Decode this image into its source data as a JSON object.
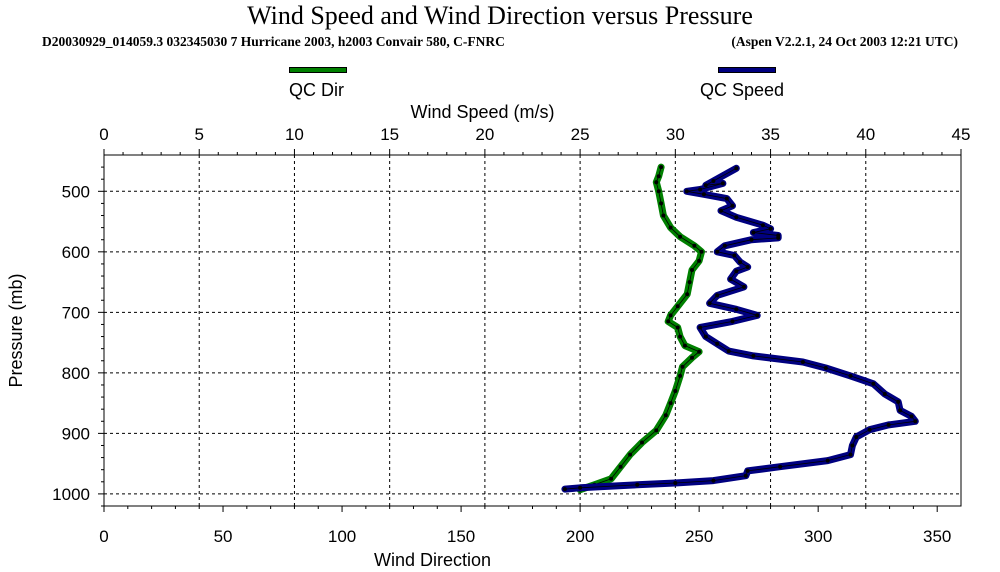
{
  "header": {
    "title": "Wind Speed and Wind Direction versus Pressure",
    "subtitle_left": "D20030929_014059.3 032345030 7 Hurricane 2003, h2003 Convair 580, C-FNRC",
    "subtitle_right": "(Aspen V2.2.1, 24 Oct 2003  12:21 UTC)"
  },
  "legend": {
    "dir_label": "QC Dir",
    "speed_label": "QC Speed",
    "dir_color": "#008000",
    "speed_color": "#000080"
  },
  "chart_data": {
    "type": "line",
    "title": "Wind Speed and Wind Direction versus Pressure",
    "ylabel": "Pressure (mb)",
    "ylim": [
      1020,
      440
    ],
    "y_ticks": [
      "500",
      "600",
      "700",
      "800",
      "900",
      "1000"
    ],
    "x_top": {
      "label": "Wind Speed (m/s)",
      "range": [
        0,
        45
      ],
      "ticks": [
        "0",
        "5",
        "10",
        "15",
        "20",
        "25",
        "30",
        "35",
        "40",
        "45"
      ]
    },
    "x_bottom": {
      "label": "Wind Direction",
      "range": [
        0,
        360
      ],
      "ticks": [
        "0",
        "50",
        "100",
        "150",
        "200",
        "250",
        "300",
        "350"
      ]
    },
    "grid": true,
    "series": [
      {
        "name": "QC Dir",
        "axis": "bottom",
        "color": "#008000",
        "points": [
          [
            234,
            460
          ],
          [
            233,
            475
          ],
          [
            232,
            485
          ],
          [
            233,
            500
          ],
          [
            234,
            520
          ],
          [
            235,
            540
          ],
          [
            238,
            560
          ],
          [
            242,
            575
          ],
          [
            248,
            590
          ],
          [
            251,
            600
          ],
          [
            250,
            615
          ],
          [
            247,
            630
          ],
          [
            246,
            650
          ],
          [
            245,
            670
          ],
          [
            241,
            690
          ],
          [
            238,
            705
          ],
          [
            237,
            715
          ],
          [
            241,
            725
          ],
          [
            242,
            740
          ],
          [
            244,
            755
          ],
          [
            250,
            765
          ],
          [
            247,
            775
          ],
          [
            243,
            790
          ],
          [
            242,
            805
          ],
          [
            240,
            830
          ],
          [
            238,
            850
          ],
          [
            236,
            870
          ],
          [
            232,
            895
          ],
          [
            226,
            915
          ],
          [
            221,
            935
          ],
          [
            217,
            955
          ],
          [
            213,
            975
          ],
          [
            206,
            985
          ],
          [
            200,
            993
          ]
        ]
      },
      {
        "name": "QC Speed",
        "axis": "top",
        "color": "#000080",
        "points": [
          [
            33.2,
            462
          ],
          [
            32.0,
            483
          ],
          [
            31.6,
            490
          ],
          [
            32.5,
            487
          ],
          [
            31.3,
            497
          ],
          [
            30.6,
            500
          ],
          [
            31.5,
            505
          ],
          [
            32.7,
            512
          ],
          [
            33.0,
            524
          ],
          [
            32.4,
            532
          ],
          [
            33.2,
            543
          ],
          [
            34.6,
            556
          ],
          [
            35.0,
            562
          ],
          [
            34.1,
            568
          ],
          [
            35.4,
            573
          ],
          [
            35.4,
            577
          ],
          [
            34.0,
            580
          ],
          [
            32.6,
            590
          ],
          [
            32.2,
            600
          ],
          [
            33.1,
            606
          ],
          [
            33.4,
            617
          ],
          [
            33.8,
            625
          ],
          [
            33.2,
            632
          ],
          [
            32.9,
            645
          ],
          [
            33.6,
            658
          ],
          [
            32.2,
            672
          ],
          [
            31.8,
            685
          ],
          [
            33.2,
            695
          ],
          [
            34.3,
            705
          ],
          [
            33.0,
            715
          ],
          [
            31.3,
            725
          ],
          [
            31.6,
            740
          ],
          [
            32.2,
            752
          ],
          [
            32.8,
            764
          ],
          [
            34.1,
            772
          ],
          [
            36.7,
            782
          ],
          [
            37.9,
            792
          ],
          [
            39.2,
            805
          ],
          [
            40.4,
            818
          ],
          [
            41.0,
            835
          ],
          [
            41.7,
            848
          ],
          [
            41.8,
            862
          ],
          [
            42.4,
            872
          ],
          [
            42.6,
            880
          ],
          [
            41.2,
            886
          ],
          [
            40.2,
            894
          ],
          [
            39.5,
            906
          ],
          [
            39.3,
            920
          ],
          [
            39.2,
            935
          ],
          [
            38.0,
            945
          ],
          [
            35.5,
            955
          ],
          [
            33.8,
            962
          ],
          [
            33.7,
            970
          ],
          [
            32.0,
            978
          ],
          [
            30.0,
            982
          ],
          [
            28.0,
            985
          ],
          [
            25.0,
            990
          ],
          [
            24.2,
            992
          ]
        ]
      }
    ]
  }
}
